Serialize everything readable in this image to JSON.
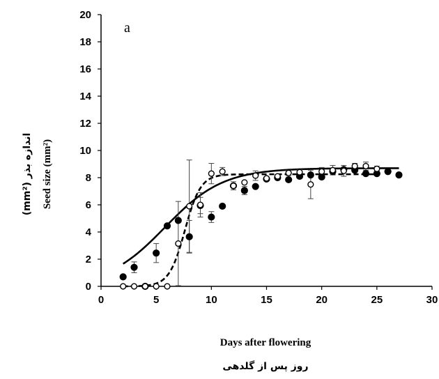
{
  "chart_data": {
    "type": "scatter",
    "panel_label": "a",
    "xlabel": "Days after flowering",
    "xlabel_fa": "روز پس از گلدهی",
    "ylabel": "Seed size (mm²)",
    "ylabel_fa": "اندازه بذر (mm²)",
    "xlim": [
      0,
      30
    ],
    "ylim": [
      0,
      20
    ],
    "xticks": [
      0,
      5,
      10,
      15,
      20,
      25,
      30
    ],
    "yticks": [
      0,
      2,
      4,
      6,
      8,
      10,
      12,
      14,
      16,
      18,
      20
    ],
    "grid": false,
    "series": [
      {
        "marker": "filled-circle",
        "color": "#000000",
        "x": [
          2,
          3,
          4,
          5,
          6,
          7,
          8,
          9,
          10,
          11,
          12,
          13,
          14,
          15,
          16,
          17,
          18,
          19,
          20,
          21,
          22,
          23,
          24,
          25,
          26,
          27
        ],
        "y": [
          0.7,
          1.4,
          0.0,
          2.45,
          4.45,
          4.85,
          3.65,
          5.95,
          5.1,
          5.9,
          7.4,
          7.05,
          7.35,
          7.9,
          8.0,
          7.85,
          8.1,
          8.2,
          8.05,
          8.45,
          8.6,
          8.55,
          8.3,
          8.3,
          8.45,
          8.2
        ],
        "err": [
          0,
          0.4,
          0,
          0.7,
          0,
          0,
          1.2,
          0.6,
          0.4,
          0,
          0.3,
          0.3,
          0,
          0,
          0,
          0,
          0,
          0,
          0,
          0,
          0,
          0,
          0,
          0,
          0,
          0
        ],
        "fit": {
          "line": "solid",
          "a": 8.7,
          "k": 0.38,
          "x0": 5.8
        }
      },
      {
        "marker": "open-circle",
        "color": "#000000",
        "x": [
          2,
          3,
          4,
          5,
          6,
          7,
          8,
          9,
          10,
          11,
          12,
          13,
          14,
          15,
          16,
          17,
          18,
          19,
          20,
          21,
          22,
          23,
          24,
          25
        ],
        "y": [
          0.0,
          0.0,
          0.0,
          0.0,
          0.0,
          3.15,
          5.9,
          6.0,
          8.3,
          8.45,
          7.4,
          7.65,
          8.15,
          7.95,
          8.1,
          8.35,
          8.4,
          7.5,
          8.45,
          8.55,
          8.5,
          8.85,
          8.85,
          8.65
        ],
        "err": [
          0,
          0,
          0,
          0,
          0,
          3.1,
          3.4,
          0.9,
          0.75,
          0.3,
          0,
          0,
          0.35,
          0,
          0,
          0.2,
          0.2,
          1.05,
          0.3,
          0.35,
          0.4,
          0.2,
          0.3,
          0.2
        ],
        "fit": {
          "line": "dashed",
          "a": 8.25,
          "k": 1.4,
          "x0": 7.6
        }
      }
    ]
  }
}
